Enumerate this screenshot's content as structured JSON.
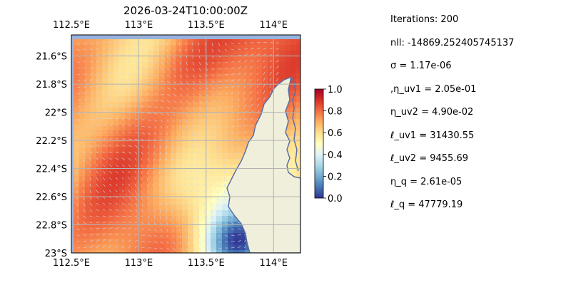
{
  "chart_data": {
    "type": "heatmap",
    "title": "2026-03-24T10:00:00Z",
    "xlabel": "",
    "ylabel": "",
    "xlim": [
      112.5,
      114.2
    ],
    "ylim": [
      -23.0,
      -21.45
    ],
    "x_ticks": [
      112.5,
      113.0,
      113.5,
      114.0
    ],
    "x_tick_labels": [
      "112.5°E",
      "113°E",
      "113.5°E",
      "114°E"
    ],
    "y_ticks": [
      -21.6,
      -21.8,
      -22.0,
      -22.2,
      -22.4,
      -22.6,
      -22.8,
      -23.0
    ],
    "y_tick_labels": [
      "21.6°S",
      "21.8°S",
      "22°S",
      "22.2°S",
      "22.4°S",
      "22.6°S",
      "22.8°S",
      "23°S"
    ],
    "grid": true,
    "colorbar": {
      "range": [
        0.0,
        1.0
      ],
      "ticks": [
        0.0,
        0.2,
        0.4,
        0.6,
        0.8,
        1.0
      ],
      "tick_labels": [
        "0.0",
        "0.2",
        "0.4",
        "0.6",
        "0.8",
        "1.0"
      ],
      "colormap": "RdYlBu_r"
    },
    "colors": {
      "ocean": "#99b3e0",
      "land": "#efefdb",
      "coastline": "#5b6fa5",
      "vectors": "#cfd8ef",
      "grid": "#b3b3b3"
    }
  },
  "panel": {
    "params": [
      "Iterations: 200",
      "nll: -14869.252405745137",
      "σ = 1.17e-06",
      ",η_uv1 = 2.05e-01",
      "η_uv2 = 4.90e-02",
      "ℓ_uv1 = 31430.55",
      "ℓ_uv2 = 9455.69",
      "η_q = 2.61e-05",
      "ℓ_q = 47779.19"
    ]
  }
}
